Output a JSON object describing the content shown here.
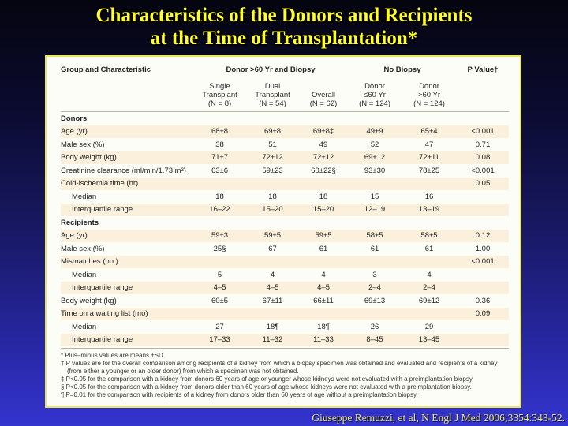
{
  "title": {
    "line1": "Characteristics of the Donors and Recipients",
    "line2": "at the Time of Transplantation*"
  },
  "citation": "Giuseppe Remuzzi, et al, N Engl J Med 2006;3354:343-52.",
  "colors": {
    "background_top": "#050510",
    "background_bottom": "#3434cf",
    "title_yellow": "#ffff33",
    "panel_border_yellow": "#ece65e",
    "row_stripe_cream": "#faf0dc",
    "citation_yellow": "#e9e96e"
  },
  "table": {
    "header": {
      "group_col": "Group and Characteristic",
      "spanner_biopsy": "Donor >60 Yr and Biopsy",
      "spanner_no_biopsy": "No Biopsy",
      "p_col": "P Value†",
      "subcolumns": [
        "Single\nTransplant\n(N = 8)",
        "Dual\nTransplant\n(N = 54)",
        "Overall\n(N = 62)",
        "Donor\n≤60 Yr\n(N = 124)",
        "Donor\n>60 Yr\n(N = 124)"
      ]
    },
    "rows": [
      {
        "label": "Donors",
        "style": "section",
        "values": [
          "",
          "",
          "",
          "",
          ""
        ],
        "p": ""
      },
      {
        "label": "Age (yr)",
        "style": "data",
        "values": [
          "68±8",
          "69±8",
          "69±8‡",
          "49±9",
          "65±4"
        ],
        "p": "<0.001"
      },
      {
        "label": "Male sex (%)",
        "style": "data",
        "values": [
          "38",
          "51",
          "49",
          "52",
          "47"
        ],
        "p": "0.71"
      },
      {
        "label": "Body weight (kg)",
        "style": "data",
        "values": [
          "71±7",
          "72±12",
          "72±12",
          "69±12",
          "72±11"
        ],
        "p": "0.08"
      },
      {
        "label": "Creatinine clearance (ml/min/1.73 m²)",
        "style": "data",
        "values": [
          "63±6",
          "59±23",
          "60±22§",
          "93±30",
          "78±25"
        ],
        "p": "<0.001"
      },
      {
        "label": "Cold-ischemia time (hr)",
        "style": "data",
        "values": [
          "",
          "",
          "",
          "",
          ""
        ],
        "p": "0.05"
      },
      {
        "label": "Median",
        "style": "sub",
        "values": [
          "18",
          "18",
          "18",
          "15",
          "16"
        ],
        "p": ""
      },
      {
        "label": "Interquartile range",
        "style": "sub",
        "values": [
          "16–22",
          "15–20",
          "15–20",
          "12–19",
          "13–19"
        ],
        "p": ""
      },
      {
        "label": "Recipients",
        "style": "section",
        "values": [
          "",
          "",
          "",
          "",
          ""
        ],
        "p": ""
      },
      {
        "label": "Age (yr)",
        "style": "data",
        "values": [
          "59±3",
          "59±5",
          "59±5",
          "58±5",
          "58±5"
        ],
        "p": "0.12"
      },
      {
        "label": "Male sex (%)",
        "style": "data",
        "values": [
          "25§",
          "67",
          "61",
          "61",
          "61"
        ],
        "p": "1.00"
      },
      {
        "label": "Mismatches (no.)",
        "style": "data",
        "values": [
          "",
          "",
          "",
          "",
          ""
        ],
        "p": "<0.001"
      },
      {
        "label": "Median",
        "style": "sub",
        "values": [
          "5",
          "4",
          "4",
          "3",
          "4"
        ],
        "p": ""
      },
      {
        "label": "Interquartile range",
        "style": "sub",
        "values": [
          "4–5",
          "4–5",
          "4–5",
          "2–4",
          "2–4"
        ],
        "p": ""
      },
      {
        "label": "Body weight (kg)",
        "style": "data",
        "values": [
          "60±5",
          "67±11",
          "66±11",
          "69±13",
          "69±12"
        ],
        "p": "0.36"
      },
      {
        "label": "Time on a waiting list (mo)",
        "style": "data",
        "values": [
          "",
          "",
          "",
          "",
          ""
        ],
        "p": "0.09"
      },
      {
        "label": "Median",
        "style": "sub",
        "values": [
          "27",
          "18¶",
          "18¶",
          "26",
          "29"
        ],
        "p": ""
      },
      {
        "label": "Interquartile range",
        "style": "sub",
        "values": [
          "17–33",
          "11–32",
          "11–33",
          "8–45",
          "13–45"
        ],
        "p": ""
      }
    ],
    "footnotes": [
      "* Plus–minus values are means ±SD.",
      "† P values are for the overall comparison among recipients of a kidney from which a biopsy specimen was obtained and evaluated and recipients of a kidney (from either a younger or an older donor) from which a specimen was not obtained.",
      "‡ P<0.05 for the comparison with a kidney from donors 60 years of age or younger whose kidneys were not evaluated with a preimplantation biopsy.",
      "§ P<0.05 for the comparison with a kidney from donors older than 60 years of age whose kidneys were not evaluated with a preimplantation biopsy.",
      "¶ P=0.01 for the comparison with recipients of a kidney from donors older than 60 years of age without a preimplantation biopsy."
    ]
  }
}
